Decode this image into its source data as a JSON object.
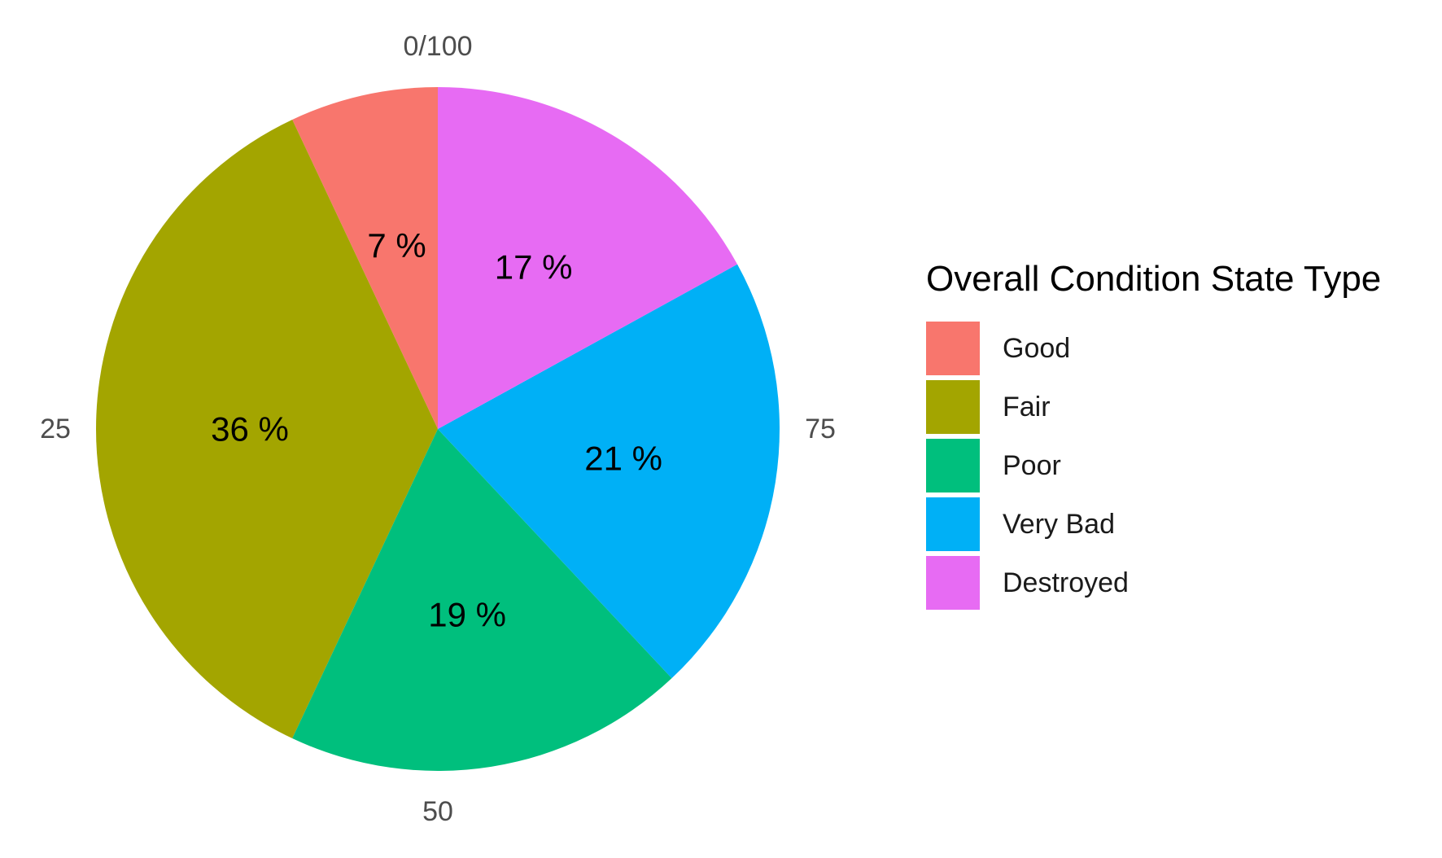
{
  "chart_data": {
    "type": "pie",
    "legend_title": "Overall Condition State Type",
    "legend_position": "right",
    "categories": [
      "Good",
      "Fair",
      "Poor",
      "Very Bad",
      "Destroyed"
    ],
    "values": [
      7,
      36,
      19,
      21,
      17
    ],
    "value_labels": [
      "7 %",
      "36 %",
      "19 %",
      "21 %",
      "17 %"
    ],
    "colors": [
      "#F8766D",
      "#A3A500",
      "#00BF7D",
      "#00B0F6",
      "#E76BF3"
    ],
    "direction": "counterclockwise",
    "theta_ticks": [
      {
        "value": 0,
        "label": "0/100"
      },
      {
        "value": 25,
        "label": "25"
      },
      {
        "value": 50,
        "label": "50"
      },
      {
        "value": 75,
        "label": "75"
      }
    ],
    "grid": false
  }
}
